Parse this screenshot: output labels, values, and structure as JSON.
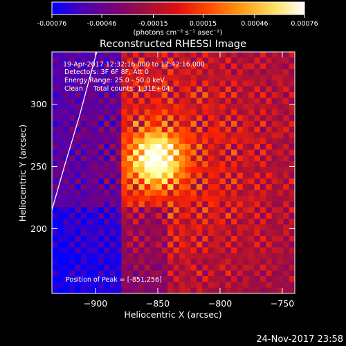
{
  "colorbar": {
    "ticks": [
      "-0.00076",
      "-0.00046",
      "-0.00015",
      "0.00015",
      "0.00046",
      "0.00076"
    ],
    "tick_values": [
      -0.00076,
      -0.00046,
      -0.00015,
      0.00015,
      0.00046,
      0.00076
    ],
    "range": [
      -0.00076,
      0.00076
    ],
    "unit_label": "(photons cm⁻² s⁻¹ asec⁻²)",
    "colors": [
      "#0000ff",
      "#4b00b4",
      "#7a0078",
      "#a0103c",
      "#ff2400",
      "#ff7800",
      "#ffd040",
      "#ffff80",
      "#ffffff"
    ]
  },
  "chart_data": {
    "type": "heatmap",
    "title": "Reconstructed RHESSI Image",
    "xlabel": "Heliocentric X (arcsec)",
    "ylabel": "Heliocentric Y (arcsec)",
    "xlim": [
      -935,
      -740
    ],
    "ylim": [
      148,
      342
    ],
    "x_ticks": [
      -900,
      -850,
      -800,
      -750
    ],
    "x_tick_labels": [
      "−900",
      "−850",
      "−800",
      "−750"
    ],
    "y_ticks": [
      200,
      250,
      300
    ],
    "y_tick_labels": [
      "200",
      "250",
      "300"
    ],
    "peak": [
      -851,
      256
    ],
    "limb_curve": [
      [
        -935,
        215
      ],
      [
        -925,
        250
      ],
      [
        -913,
        290
      ],
      [
        -905,
        320
      ],
      [
        -899,
        342
      ]
    ],
    "annotations": {
      "time_range": "19-Apr-2017 12:32:16.000 to 12:42:16.000",
      "detectors": "Detectors: 3F 6F 8F, Att 0",
      "energy": "Energy Range: 25.0 - 50.0 keV",
      "algorithm": "Clean     Total counts: 1.31E+04",
      "peak_position": "Position of Peak = [-851,256]"
    }
  },
  "footer": {
    "date": "24-Nov-2017 23:58"
  }
}
